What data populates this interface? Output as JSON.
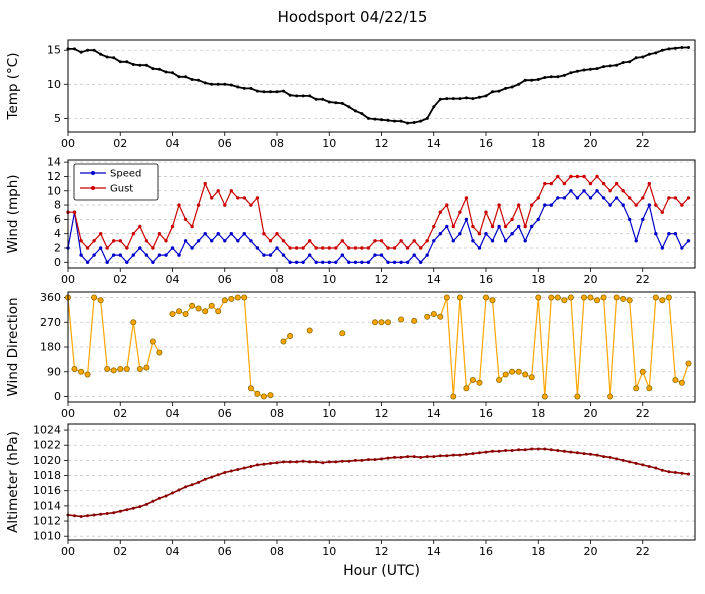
{
  "title": "Hoodsport 04/22/15",
  "xlabel": "Hour (UTC)",
  "x_range": [
    0,
    24
  ],
  "x_ticks": [
    0,
    2,
    4,
    6,
    8,
    10,
    12,
    14,
    16,
    18,
    20,
    22
  ],
  "x_tick_labels": [
    "00",
    "02",
    "04",
    "06",
    "08",
    "10",
    "12",
    "14",
    "16",
    "18",
    "20",
    "22"
  ],
  "chart_data": [
    {
      "id": "temp",
      "type": "line",
      "ylabel": "Temp (°C)",
      "ylim": [
        3,
        16.5
      ],
      "yticks": [
        5,
        10,
        15
      ],
      "x_start": 0,
      "x_step": 0.25,
      "series": [
        {
          "name": "Temp",
          "color": "#000000",
          "width": 1.8,
          "marker_size": 1.5,
          "values": [
            15.2,
            15.2,
            14.7,
            15.0,
            15.0,
            14.4,
            14.0,
            13.9,
            13.3,
            13.3,
            12.9,
            12.8,
            12.8,
            12.3,
            12.2,
            11.8,
            11.7,
            11.1,
            11.1,
            10.7,
            10.6,
            10.2,
            10.0,
            10.0,
            10.0,
            9.9,
            9.6,
            9.4,
            9.4,
            9.0,
            8.9,
            8.9,
            8.9,
            9.0,
            8.4,
            8.3,
            8.3,
            8.3,
            7.8,
            7.8,
            7.4,
            7.3,
            7.2,
            6.7,
            6.1,
            5.7,
            5.0,
            4.9,
            4.8,
            4.7,
            4.6,
            4.6,
            4.3,
            4.4,
            4.6,
            5.0,
            6.7,
            7.8,
            7.9,
            7.9,
            7.9,
            8.0,
            7.9,
            8.1,
            8.3,
            8.9,
            9.0,
            9.4,
            9.6,
            10.0,
            10.6,
            10.6,
            10.7,
            11.0,
            11.1,
            11.1,
            11.3,
            11.7,
            11.9,
            12.1,
            12.2,
            12.3,
            12.6,
            12.7,
            12.8,
            13.2,
            13.3,
            13.9,
            14.0,
            14.4,
            14.6,
            15.0,
            15.2,
            15.3,
            15.4,
            15.4
          ]
        }
      ]
    },
    {
      "id": "wind",
      "type": "line",
      "ylabel": "Wind (mph)",
      "ylim": [
        -0.8,
        14.3
      ],
      "yticks": [
        0,
        2,
        4,
        6,
        8,
        10,
        12,
        14
      ],
      "x_start": 0,
      "x_step": 0.25,
      "show_legend": true,
      "legend_position": "upper-left",
      "series": [
        {
          "name": "Speed",
          "color": "#0000cc",
          "width": 1.2,
          "marker_size": 1.7,
          "values": [
            2,
            7,
            1,
            0,
            1,
            2,
            0,
            1,
            1,
            0,
            1,
            2,
            1,
            0,
            1,
            1,
            2,
            1,
            3,
            2,
            3,
            4,
            3,
            4,
            3,
            4,
            3,
            4,
            3,
            2,
            1,
            1,
            2,
            1,
            0,
            0,
            0,
            1,
            0,
            0,
            0,
            0,
            1,
            0,
            0,
            0,
            0,
            1,
            1,
            0,
            0,
            0,
            0,
            1,
            0,
            1,
            3,
            4,
            5,
            3,
            4,
            6,
            3,
            2,
            4,
            3,
            5,
            3,
            4,
            5,
            3,
            5,
            6,
            8,
            8,
            9,
            9,
            10,
            9,
            10,
            9,
            10,
            9,
            8,
            9,
            8,
            6,
            3,
            6,
            8,
            4,
            2,
            4,
            4,
            2,
            3
          ]
        },
        {
          "name": "Gust",
          "color": "#cc0000",
          "width": 1.2,
          "marker_size": 1.7,
          "values": [
            7,
            7,
            3,
            2,
            3,
            4,
            2,
            3,
            3,
            2,
            4,
            5,
            3,
            2,
            4,
            3,
            5,
            8,
            6,
            5,
            8,
            11,
            9,
            10,
            8,
            10,
            9,
            9,
            8,
            9,
            4,
            3,
            4,
            3,
            2,
            2,
            2,
            3,
            2,
            2,
            2,
            2,
            3,
            2,
            2,
            2,
            2,
            3,
            3,
            2,
            2,
            3,
            2,
            3,
            2,
            3,
            5,
            7,
            8,
            5,
            7,
            9,
            5,
            4,
            7,
            5,
            8,
            5,
            6,
            8,
            5,
            8,
            9,
            11,
            11,
            12,
            11,
            12,
            12,
            12,
            11,
            12,
            11,
            10,
            11,
            10,
            9,
            8,
            9,
            11,
            8,
            7,
            9,
            9,
            8,
            9
          ]
        }
      ]
    },
    {
      "id": "wind-direction",
      "type": "scatter-line",
      "ylabel": "Wind Direction",
      "ylim": [
        -20,
        380
      ],
      "yticks": [
        0,
        90,
        180,
        270,
        360
      ],
      "x_start": 0,
      "x_step": 0.25,
      "series": [
        {
          "name": "Direction",
          "color": "#ffa500",
          "width": 1.2,
          "marker_size": 2.6,
          "marker_color": "#ffa500",
          "marker_edge": "#8a6d00",
          "values": [
            360,
            100,
            90,
            80,
            360,
            350,
            100,
            95,
            100,
            100,
            270,
            100,
            105,
            200,
            160,
            null,
            300,
            310,
            300,
            330,
            320,
            310,
            330,
            310,
            350,
            355,
            360,
            360,
            30,
            10,
            0,
            5,
            null,
            200,
            220,
            null,
            null,
            240,
            null,
            null,
            null,
            null,
            230,
            null,
            null,
            null,
            null,
            270,
            270,
            270,
            null,
            280,
            null,
            275,
            null,
            290,
            300,
            290,
            360,
            0,
            360,
            30,
            60,
            50,
            360,
            350,
            60,
            80,
            90,
            90,
            80,
            70,
            360,
            0,
            360,
            360,
            350,
            360,
            0,
            360,
            360,
            350,
            360,
            0,
            360,
            355,
            350,
            30,
            90,
            30,
            360,
            350,
            360,
            60,
            50,
            120
          ]
        }
      ]
    },
    {
      "id": "altimeter",
      "type": "line",
      "ylabel": "Altimeter (hPa)",
      "ylim": [
        1009.5,
        1024.8
      ],
      "yticks": [
        1010,
        1012,
        1014,
        1016,
        1018,
        1020,
        1022,
        1024
      ],
      "x_start": 0,
      "x_step": 0.25,
      "series": [
        {
          "name": "Altimeter",
          "color": "#8b0000",
          "width": 1.6,
          "marker_size": 1.5,
          "values": [
            1012.8,
            1012.7,
            1012.6,
            1012.7,
            1012.8,
            1012.9,
            1013.0,
            1013.1,
            1013.3,
            1013.5,
            1013.7,
            1013.9,
            1014.2,
            1014.6,
            1015.0,
            1015.3,
            1015.7,
            1016.1,
            1016.5,
            1016.8,
            1017.1,
            1017.5,
            1017.8,
            1018.1,
            1018.4,
            1018.6,
            1018.8,
            1019.0,
            1019.2,
            1019.4,
            1019.5,
            1019.6,
            1019.7,
            1019.8,
            1019.8,
            1019.8,
            1019.9,
            1019.8,
            1019.8,
            1019.7,
            1019.8,
            1019.8,
            1019.9,
            1019.9,
            1020.0,
            1020.0,
            1020.1,
            1020.1,
            1020.2,
            1020.3,
            1020.4,
            1020.4,
            1020.5,
            1020.5,
            1020.4,
            1020.5,
            1020.5,
            1020.6,
            1020.6,
            1020.7,
            1020.7,
            1020.8,
            1020.9,
            1021.0,
            1021.1,
            1021.2,
            1021.2,
            1021.3,
            1021.3,
            1021.4,
            1021.4,
            1021.5,
            1021.5,
            1021.5,
            1021.4,
            1021.3,
            1021.2,
            1021.1,
            1021.0,
            1020.9,
            1020.8,
            1020.7,
            1020.5,
            1020.4,
            1020.2,
            1020.0,
            1019.8,
            1019.6,
            1019.4,
            1019.2,
            1019.0,
            1018.7,
            1018.5,
            1018.4,
            1018.3,
            1018.2
          ]
        }
      ]
    }
  ],
  "colors": {
    "grid": "#c8c8c8",
    "axis": "#000000",
    "speed": "#0000cc",
    "gust": "#cc0000",
    "direction": "#ffa500",
    "altimeter": "#8b0000",
    "temp": "#000000"
  }
}
